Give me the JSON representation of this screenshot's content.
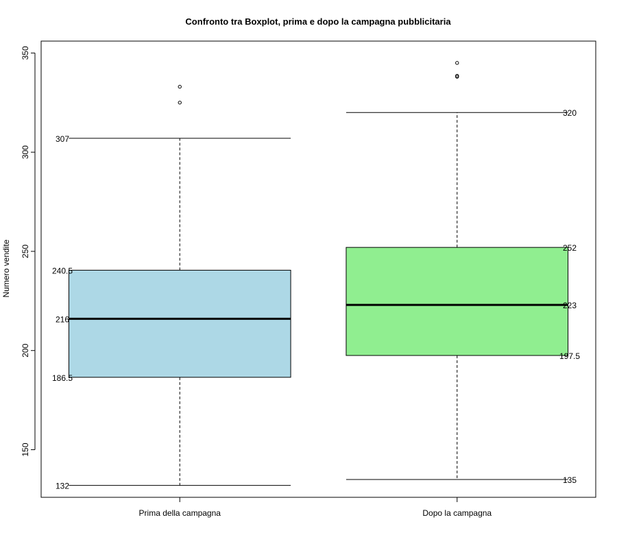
{
  "chart_data": {
    "type": "boxplot",
    "title": "Confronto tra Boxplot, prima e dopo la campagna pubblicitaria",
    "xlabel": "",
    "ylabel": "Numero vendite",
    "ylim": [
      126,
      356
    ],
    "yticks": [
      150,
      200,
      250,
      300,
      350
    ],
    "ytick_labels": [
      "150",
      "200",
      "250",
      "300",
      "350"
    ],
    "grid": false,
    "legend": "none",
    "categories": [
      "Prima della campagna",
      "Dopo la campagna"
    ],
    "series": [
      {
        "category": "Prima della campagna",
        "color": "#add8e6",
        "whisker_low": 132,
        "q1": 186.5,
        "median": 216,
        "q3": 240.5,
        "whisker_high": 307,
        "outliers": [
          325,
          333
        ],
        "labels": {
          "whisker_high": "307",
          "q3": "240.5",
          "median": "216",
          "q1": "186.5",
          "whisker_low": "132"
        },
        "label_side": "left"
      },
      {
        "category": "Dopo la campagna",
        "color": "#90ee90",
        "whisker_low": 135,
        "q1": 197.5,
        "median": 223,
        "q3": 252,
        "whisker_high": 320,
        "outliers": [
          338,
          338.5,
          345
        ],
        "labels": {
          "whisker_high": "320",
          "q3": "252",
          "median": "223",
          "q1": "197.5",
          "whisker_low": "135"
        },
        "label_side": "right"
      }
    ]
  }
}
